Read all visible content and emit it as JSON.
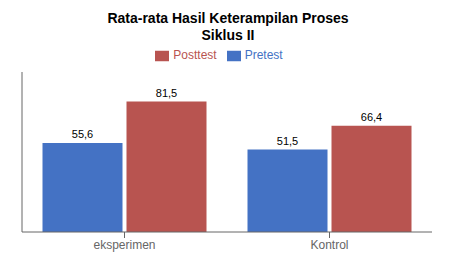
{
  "chart_data": {
    "type": "bar",
    "title": "Rata-rata Hasil Keterampilan Proses\nSiklus II",
    "categories": [
      "eksperimen",
      "Kontrol"
    ],
    "series": [
      {
        "name": "Pretest",
        "color": "#4472C4",
        "values": [
          55.6,
          51.5
        ],
        "value_labels": [
          "55,6",
          "51,5"
        ]
      },
      {
        "name": "Posttest",
        "color": "#B85450",
        "values": [
          81.5,
          66.4
        ],
        "value_labels": [
          "81,5",
          "66,4"
        ]
      }
    ],
    "ylim": [
      0,
      100
    ],
    "yticks": [],
    "data_labels": true,
    "tick_labels": "x",
    "grid": false
  }
}
